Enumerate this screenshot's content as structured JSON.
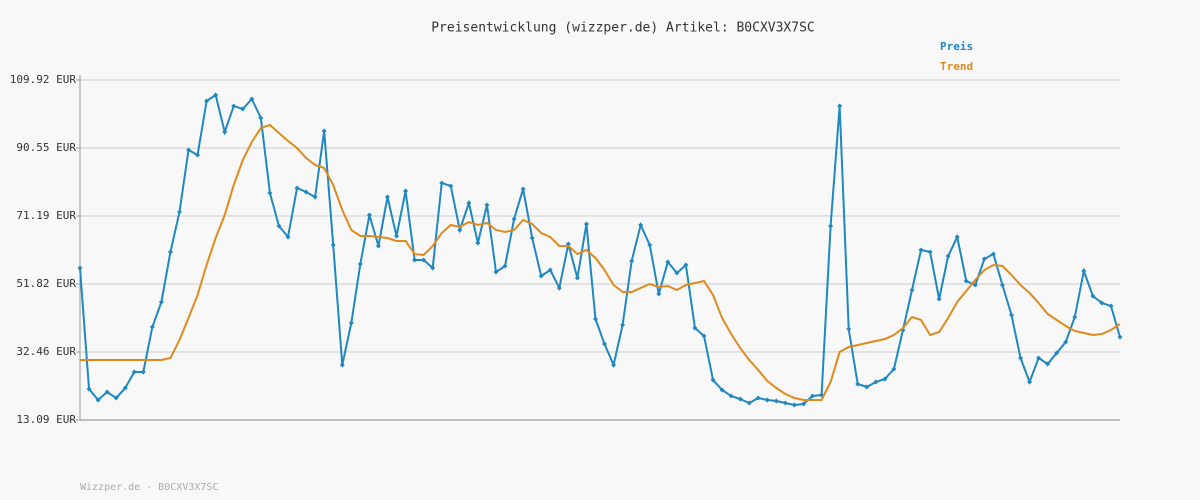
{
  "chart_data": {
    "type": "line",
    "title": "Preisentwicklung (wizzper.de) Artikel: B0CXV3X7SC",
    "footer": "Wizzper.de - B0CXV3X7SC",
    "ylim": [
      13.09,
      109.92
    ],
    "yticks": [
      {
        "value": 13.09,
        "label": "13.09 EUR"
      },
      {
        "value": 32.46,
        "label": "32.46 EUR"
      },
      {
        "value": 51.82,
        "label": "51.82 EUR"
      },
      {
        "value": 71.19,
        "label": "71.19 EUR"
      },
      {
        "value": 90.55,
        "label": "90.55 EUR"
      },
      {
        "value": 109.92,
        "label": "109.92 EUR"
      }
    ],
    "grid": true,
    "legend": "top-right",
    "series": [
      {
        "name": "Preis",
        "color": "#1f88c0",
        "markers": true,
        "values": [
          56.38,
          21.92,
          18.79,
          21.06,
          19.36,
          22.2,
          26.76,
          26.76,
          39.58,
          46.7,
          60.94,
          72.33,
          89.99,
          88.56,
          103.94,
          105.65,
          95.11,
          102.52,
          101.66,
          104.51,
          99.1,
          77.74,
          68.34,
          65.21,
          79.16,
          78.02,
          76.6,
          95.4,
          62.93,
          28.75,
          40.72,
          57.52,
          71.47,
          62.65,
          76.6,
          65.49,
          78.31,
          58.66,
          58.66,
          56.38,
          80.59,
          79.73,
          67.2,
          74.89,
          63.5,
          74.32,
          55.24,
          56.95,
          70.33,
          78.88,
          64.92,
          54.1,
          55.81,
          50.68,
          63.21,
          53.53,
          68.91,
          41.85,
          34.73,
          28.75,
          40.15,
          58.37,
          68.63,
          62.93,
          48.97,
          58.09,
          54.96,
          57.23,
          39.29,
          37.01,
          24.48,
          21.63,
          19.93,
          19.07,
          17.93,
          19.36,
          18.79,
          18.5,
          17.93,
          17.36,
          17.65,
          19.93,
          20.21,
          68.34,
          102.52,
          39.01,
          23.34,
          22.49,
          23.91,
          24.77,
          27.61,
          38.72,
          50.11,
          61.51,
          60.94,
          47.55,
          59.8,
          65.21,
          52.68,
          51.54,
          58.94,
          60.37,
          51.54,
          42.99,
          30.75,
          23.91,
          30.75,
          29.04,
          32.17,
          35.3,
          42.42,
          55.53,
          48.41,
          46.41,
          45.56,
          36.73
        ]
      },
      {
        "name": "Trend",
        "color": "#e08a1e",
        "markers": false,
        "values": [
          30.18,
          30.18,
          30.18,
          30.18,
          30.18,
          30.18,
          30.18,
          30.18,
          30.18,
          30.18,
          30.75,
          35.87,
          42.14,
          48.69,
          57.23,
          64.92,
          71.47,
          80.02,
          87.14,
          92.26,
          96.25,
          97.11,
          94.83,
          92.55,
          90.56,
          87.71,
          85.71,
          84.86,
          80.02,
          72.9,
          67.2,
          65.49,
          65.49,
          65.21,
          64.92,
          64.07,
          64.07,
          60.37,
          60.08,
          62.65,
          66.35,
          68.63,
          68.06,
          69.48,
          68.63,
          69.2,
          67.2,
          66.63,
          67.2,
          70.05,
          68.91,
          66.35,
          65.21,
          62.65,
          62.65,
          60.37,
          61.51,
          59.23,
          55.81,
          51.54,
          49.54,
          49.54,
          50.68,
          51.82,
          50.97,
          51.25,
          50.11,
          51.54,
          52.11,
          52.68,
          48.69,
          42.14,
          37.58,
          33.6,
          30.18,
          27.33,
          24.2,
          22.2,
          20.49,
          19.36,
          18.79,
          18.79,
          18.79,
          23.91,
          32.46,
          33.88,
          34.45,
          35.02,
          35.59,
          36.16,
          37.3,
          39.29,
          42.42,
          41.57,
          37.3,
          38.15,
          42.14,
          46.7,
          49.83,
          52.96,
          55.81,
          57.23,
          56.95,
          54.39,
          51.54,
          49.26,
          46.41,
          43.28,
          41.57,
          39.86,
          38.44,
          37.87,
          37.3,
          37.58,
          38.72,
          40.43
        ]
      }
    ]
  }
}
